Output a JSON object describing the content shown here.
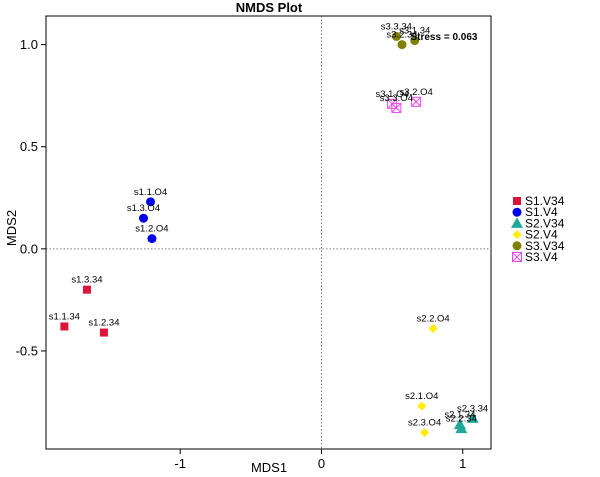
{
  "chart_data": {
    "type": "scatter",
    "title": "NMDS Plot",
    "xlabel": "MDS1",
    "ylabel": "MDS2",
    "xlim": [
      -1.95,
      1.2
    ],
    "ylim": [
      -0.98,
      1.14
    ],
    "x_ticks": [
      -1,
      0,
      1
    ],
    "x_tick_labels": [
      "-1",
      "0",
      "1"
    ],
    "y_ticks": [
      -0.5,
      0.0,
      0.5,
      1.0
    ],
    "y_tick_labels": [
      "-0.5",
      "0.0",
      "0.5",
      "1.0"
    ],
    "reference_lines": {
      "x": 0,
      "y": 0,
      "style": "dotted"
    },
    "annotation": "Stress = 0.063",
    "legend_position": "right",
    "series": [
      {
        "name": "S1.V34",
        "color": "#dc143c",
        "marker": "square",
        "points": [
          {
            "label": "s1.3.34",
            "x": -1.66,
            "y": -0.2
          },
          {
            "label": "s1.1.34",
            "x": -1.82,
            "y": -0.38
          },
          {
            "label": "s1.2.34",
            "x": -1.54,
            "y": -0.41
          }
        ]
      },
      {
        "name": "S1.V4",
        "color": "#0000ee",
        "marker": "circle",
        "points": [
          {
            "label": "s1.1.O4",
            "x": -1.21,
            "y": 0.23
          },
          {
            "label": "s1.3.O4",
            "x": -1.26,
            "y": 0.15
          },
          {
            "label": "s1.2.O4",
            "x": -1.2,
            "y": 0.05
          }
        ]
      },
      {
        "name": "S2.V34",
        "color": "#1fa89a",
        "marker": "triangle",
        "points": [
          {
            "label": "s2.3.34",
            "x": 1.07,
            "y": -0.83
          },
          {
            "label": "s2.1.34",
            "x": 0.98,
            "y": -0.86
          },
          {
            "label": "s2.2.34",
            "x": 0.99,
            "y": -0.88
          }
        ]
      },
      {
        "name": "S2.V4",
        "color": "#ffee00",
        "marker": "diamond",
        "points": [
          {
            "label": "s2.2.O4",
            "x": 0.79,
            "y": -0.39
          },
          {
            "label": "s2.1.O4",
            "x": 0.71,
            "y": -0.77
          },
          {
            "label": "s2.3.O4",
            "x": 0.73,
            "y": -0.9
          }
        ]
      },
      {
        "name": "S3.V34",
        "color": "#7f7f00",
        "marker": "circle",
        "points": [
          {
            "label": "s3.3.34",
            "x": 0.53,
            "y": 1.04
          },
          {
            "label": "s3.1.34",
            "x": 0.66,
            "y": 1.02
          },
          {
            "label": "s3.2.34",
            "x": 0.57,
            "y": 1.0
          }
        ]
      },
      {
        "name": "S3.V4",
        "color": "#ee44ee",
        "marker": "boxcross",
        "points": [
          {
            "label": "s3.1.O4",
            "x": 0.5,
            "y": 0.71
          },
          {
            "label": "s3.2.O4",
            "x": 0.67,
            "y": 0.72
          },
          {
            "label": "s3.3.O4",
            "x": 0.53,
            "y": 0.69
          }
        ]
      }
    ]
  }
}
